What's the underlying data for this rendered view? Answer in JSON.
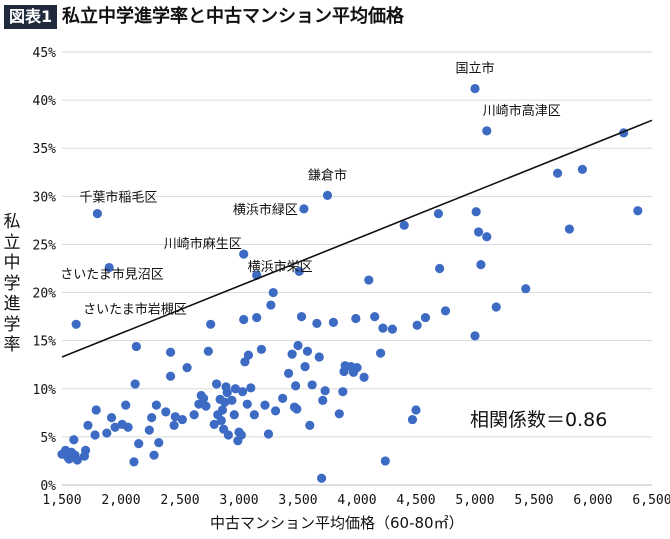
{
  "header": {
    "badge": "図表1",
    "title": "私立中学進学率と中古マンション平均価格"
  },
  "chart_data": {
    "type": "scatter",
    "xlabel": "中古マンション平均価格（60-80㎡）",
    "ylabel": "私立中学進学率",
    "xlim": [
      1500,
      6500
    ],
    "ylim": [
      0,
      45
    ],
    "xticks": [
      1500,
      2000,
      2500,
      3000,
      3500,
      4000,
      4500,
      5000,
      5500,
      6000,
      6500
    ],
    "xtick_labels": [
      "1,500",
      "2,000",
      "2,500",
      "3,000",
      "3,500",
      "4,000",
      "4,500",
      "5,000",
      "5,500",
      "6,000",
      "6,500"
    ],
    "yticks": [
      0,
      5,
      10,
      15,
      20,
      25,
      30,
      35,
      40,
      45
    ],
    "ytick_labels": [
      "0%",
      "5%",
      "10%",
      "15%",
      "20%",
      "25%",
      "30%",
      "35%",
      "40%",
      "45%"
    ],
    "grid": "horizontal",
    "marker_color": "#3d6bc4",
    "trendline": {
      "x": [
        1500,
        6500
      ],
      "y": [
        13.3,
        37.9
      ]
    },
    "correlation_label": "相関係数＝0.86",
    "annotations": [
      {
        "text": "国立市",
        "x": 5000,
        "y": 41.2
      },
      {
        "text": "川崎市高津区",
        "x": 5100,
        "y": 36.8
      },
      {
        "text": "鎌倉市",
        "x": 3750,
        "y": 30.1
      },
      {
        "text": "横浜市緑区",
        "x": 3550,
        "y": 28.7
      },
      {
        "text": "千葉市稲毛区",
        "x": 1800,
        "y": 28.2
      },
      {
        "text": "川崎市麻生区",
        "x": 3040,
        "y": 24.0
      },
      {
        "text": "横浜市栄区",
        "x": 3150,
        "y": 21.8
      },
      {
        "text": "さいたま市見沼区",
        "x": 1900,
        "y": 22.6
      },
      {
        "text": "さいたま市岩槻区",
        "x": 1620,
        "y": 16.7
      }
    ],
    "points": [
      [
        1500,
        3.2
      ],
      [
        1530,
        3.6
      ],
      [
        1550,
        2.9
      ],
      [
        1560,
        2.7
      ],
      [
        1580,
        3.4
      ],
      [
        1600,
        4.7
      ],
      [
        1610,
        3.1
      ],
      [
        1630,
        2.6
      ],
      [
        1690,
        3.0
      ],
      [
        1700,
        3.6
      ],
      [
        1720,
        6.2
      ],
      [
        1780,
        5.2
      ],
      [
        1790,
        7.8
      ],
      [
        1880,
        5.4
      ],
      [
        1920,
        7.0
      ],
      [
        1950,
        6.0
      ],
      [
        2010,
        6.3
      ],
      [
        2040,
        8.3
      ],
      [
        2060,
        6.0
      ],
      [
        2110,
        2.4
      ],
      [
        2120,
        10.5
      ],
      [
        2130,
        14.4
      ],
      [
        2150,
        4.3
      ],
      [
        2240,
        5.7
      ],
      [
        2260,
        7.0
      ],
      [
        2280,
        3.1
      ],
      [
        2300,
        8.3
      ],
      [
        2320,
        4.4
      ],
      [
        2380,
        7.6
      ],
      [
        2420,
        11.3
      ],
      [
        2420,
        13.8
      ],
      [
        2450,
        6.2
      ],
      [
        2460,
        7.1
      ],
      [
        2520,
        6.8
      ],
      [
        2560,
        12.2
      ],
      [
        2620,
        7.3
      ],
      [
        2660,
        8.4
      ],
      [
        2680,
        9.3
      ],
      [
        2700,
        9.0
      ],
      [
        2720,
        8.2
      ],
      [
        2740,
        13.9
      ],
      [
        2760,
        16.7
      ],
      [
        2790,
        6.3
      ],
      [
        2810,
        10.5
      ],
      [
        2820,
        7.3
      ],
      [
        2840,
        8.9
      ],
      [
        2850,
        6.7
      ],
      [
        2860,
        7.8
      ],
      [
        2870,
        5.8
      ],
      [
        2880,
        8.6
      ],
      [
        2890,
        10.2
      ],
      [
        2900,
        9.6
      ],
      [
        2910,
        5.2
      ],
      [
        2940,
        8.8
      ],
      [
        2960,
        7.3
      ],
      [
        2970,
        10.0
      ],
      [
        2990,
        4.6
      ],
      [
        3000,
        5.5
      ],
      [
        3020,
        5.2
      ],
      [
        3030,
        9.7
      ],
      [
        3040,
        17.2
      ],
      [
        3050,
        12.8
      ],
      [
        3070,
        8.4
      ],
      [
        3080,
        13.5
      ],
      [
        3100,
        10.1
      ],
      [
        3130,
        7.3
      ],
      [
        3150,
        17.4
      ],
      [
        3190,
        14.1
      ],
      [
        3220,
        8.3
      ],
      [
        3250,
        5.3
      ],
      [
        3270,
        18.7
      ],
      [
        3290,
        20.0
      ],
      [
        3310,
        7.7
      ],
      [
        3370,
        9.0
      ],
      [
        3420,
        11.6
      ],
      [
        3450,
        13.6
      ],
      [
        3470,
        8.1
      ],
      [
        3480,
        10.3
      ],
      [
        3490,
        7.9
      ],
      [
        3500,
        14.5
      ],
      [
        3510,
        22.2
      ],
      [
        3530,
        17.5
      ],
      [
        3560,
        12.3
      ],
      [
        3580,
        13.9
      ],
      [
        3600,
        6.2
      ],
      [
        3620,
        10.4
      ],
      [
        3660,
        16.8
      ],
      [
        3680,
        13.3
      ],
      [
        3700,
        0.7
      ],
      [
        3710,
        8.8
      ],
      [
        3730,
        9.8
      ],
      [
        3800,
        16.9
      ],
      [
        3850,
        7.4
      ],
      [
        3880,
        9.7
      ],
      [
        3890,
        11.8
      ],
      [
        3900,
        12.4
      ],
      [
        3950,
        12.3
      ],
      [
        3970,
        11.7
      ],
      [
        3990,
        17.3
      ],
      [
        4000,
        12.2
      ],
      [
        4060,
        11.2
      ],
      [
        4100,
        21.3
      ],
      [
        4150,
        17.5
      ],
      [
        4200,
        13.7
      ],
      [
        4220,
        16.3
      ],
      [
        4240,
        2.5
      ],
      [
        4300,
        16.2
      ],
      [
        4400,
        27.0
      ],
      [
        4470,
        6.8
      ],
      [
        4500,
        7.8
      ],
      [
        4510,
        16.6
      ],
      [
        4580,
        17.4
      ],
      [
        4690,
        28.2
      ],
      [
        4700,
        22.5
      ],
      [
        4750,
        18.1
      ],
      [
        5000,
        15.5
      ],
      [
        5010,
        28.4
      ],
      [
        5030,
        26.3
      ],
      [
        5050,
        22.9
      ],
      [
        5100,
        25.8
      ],
      [
        5180,
        18.5
      ],
      [
        5430,
        20.4
      ],
      [
        5700,
        32.4
      ],
      [
        5800,
        26.6
      ],
      [
        5910,
        32.8
      ],
      [
        6260,
        36.6
      ],
      [
        6380,
        28.5
      ],
      [
        5000,
        41.2
      ],
      [
        5100,
        36.8
      ],
      [
        3750,
        30.1
      ],
      [
        3550,
        28.7
      ],
      [
        1800,
        28.2
      ],
      [
        3040,
        24.0
      ],
      [
        3150,
        21.8
      ],
      [
        1900,
        22.6
      ],
      [
        1620,
        16.7
      ]
    ]
  }
}
